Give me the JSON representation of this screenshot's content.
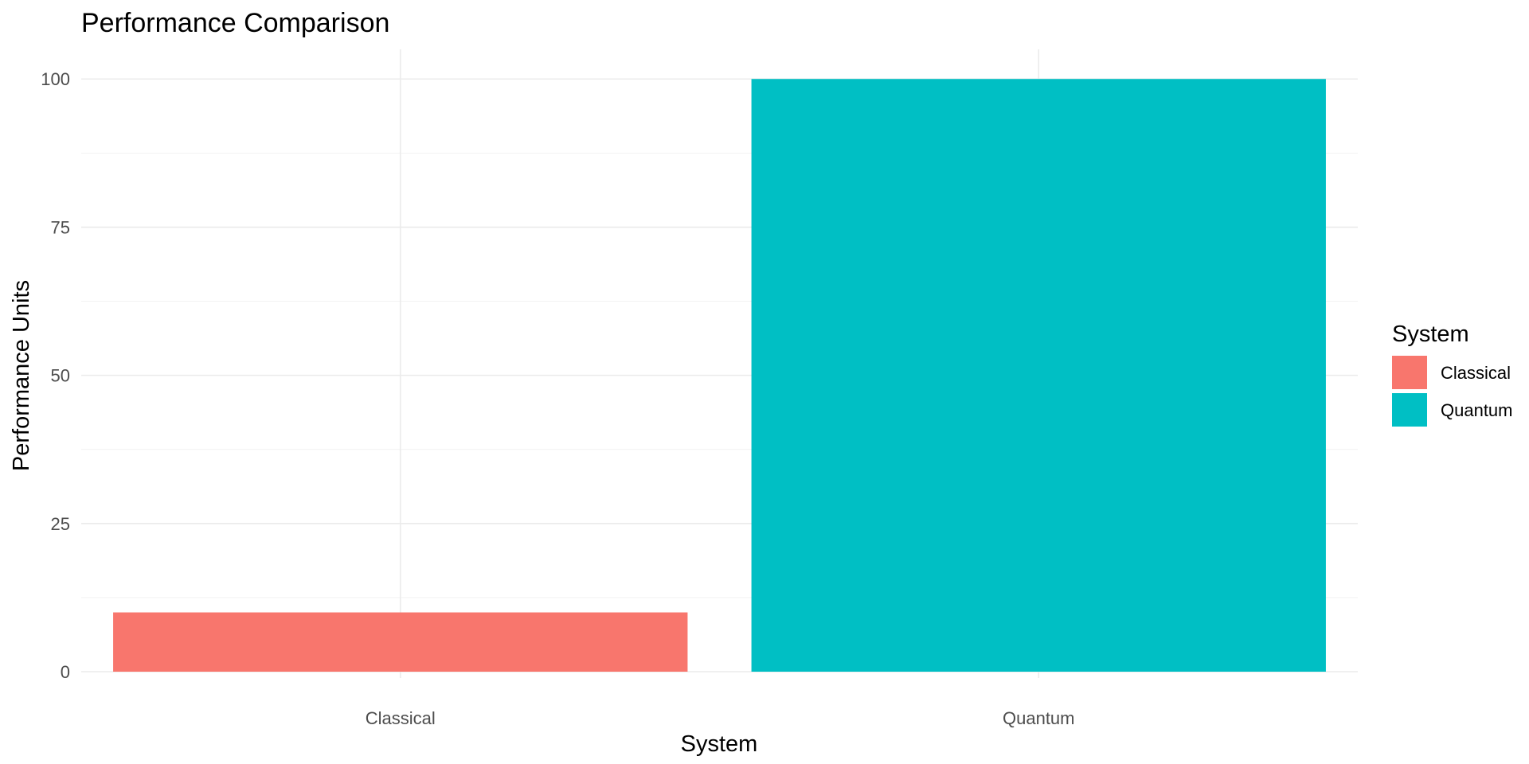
{
  "chart_data": {
    "type": "bar",
    "title": "Performance Comparison",
    "xlabel": "System",
    "ylabel": "Performance Units",
    "categories": [
      "Classical",
      "Quantum"
    ],
    "values": [
      10,
      100
    ],
    "colors": [
      "#F8766D",
      "#00BFC4"
    ],
    "ylim": [
      0,
      105
    ],
    "yticks": [
      0,
      25,
      50,
      75,
      100
    ],
    "ytick_labels": [
      "0",
      "25",
      "50",
      "75",
      "100"
    ],
    "grid": true,
    "legend": {
      "title": "System",
      "position": "right",
      "entries": [
        {
          "label": "Classical",
          "color": "#F8766D"
        },
        {
          "label": "Quantum",
          "color": "#00BFC4"
        }
      ]
    }
  }
}
